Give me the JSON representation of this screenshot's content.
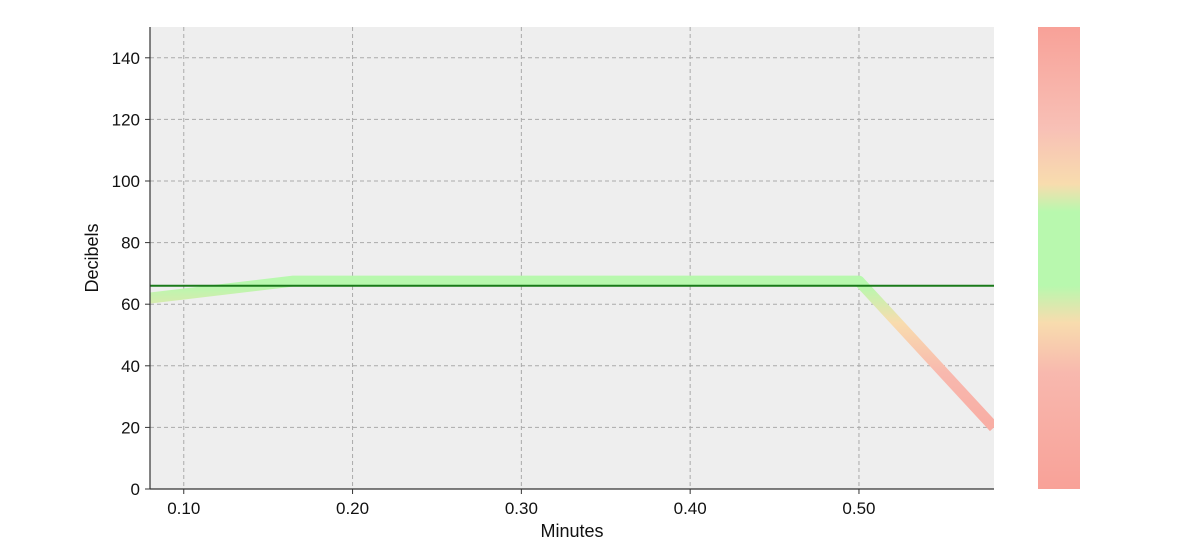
{
  "chart_data": {
    "type": "line",
    "title": "",
    "xlabel": "Minutes",
    "ylabel": "Decibels",
    "xlim": [
      0.08,
      0.58
    ],
    "ylim": [
      0,
      150
    ],
    "x_ticks": [
      0.1,
      0.2,
      0.3,
      0.4,
      0.5
    ],
    "x_tick_labels": [
      "0.10",
      "0.20",
      "0.30",
      "0.40",
      "0.50"
    ],
    "y_ticks": [
      0,
      20,
      40,
      60,
      80,
      100,
      120,
      140
    ],
    "y_tick_labels": [
      "0",
      "20",
      "40",
      "60",
      "80",
      "100",
      "120",
      "140"
    ],
    "grid": true,
    "legend": "none",
    "series": [
      {
        "x": [
          0.08,
          0.165,
          0.5,
          0.58
        ],
        "values": [
          62,
          67.5,
          67.5,
          20
        ]
      }
    ],
    "reference_line": {
      "y": 66,
      "color": "#1a7a1a"
    },
    "colorbar": {
      "stops": [
        {
          "offset": 0.0,
          "color": "#f8a198"
        },
        {
          "offset": 0.25,
          "color": "#f8b8ae"
        },
        {
          "offset": 0.36,
          "color": "#f8dcae"
        },
        {
          "offset": 0.44,
          "color": "#b8f8ae"
        },
        {
          "offset": 0.6,
          "color": "#b8f8ae"
        },
        {
          "offset": 0.66,
          "color": "#f8dcae"
        },
        {
          "offset": 0.78,
          "color": "#f8c0b6"
        },
        {
          "offset": 1.0,
          "color": "#f8a198"
        }
      ]
    },
    "colors": {
      "plot_background": "#eeeeee",
      "grid": "#aaaaaa",
      "axis": "#333333",
      "line_safe": "#b8f8ae",
      "line_warn": "#f8dcae",
      "line_danger": "#f8b0a6"
    }
  }
}
